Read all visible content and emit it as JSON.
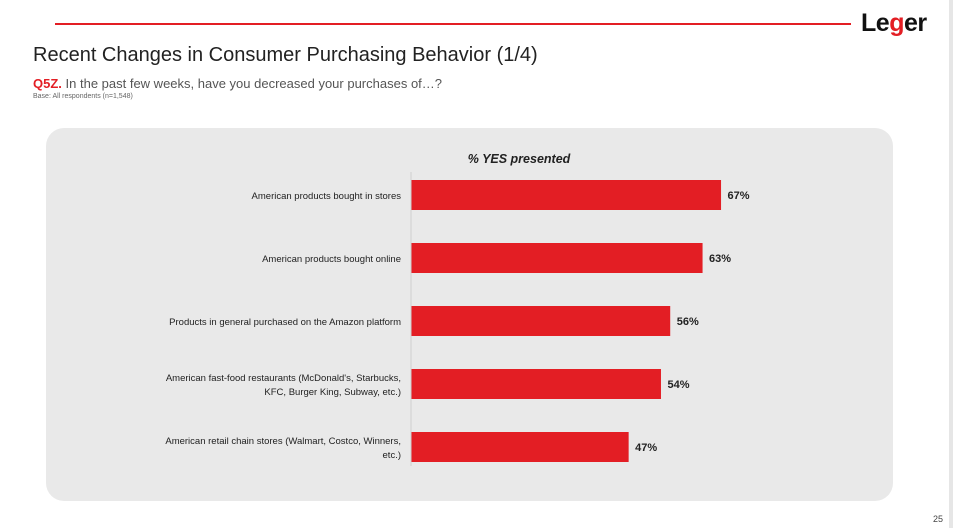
{
  "header": {
    "logo_text_pre": "Le",
    "logo_text_g": "g",
    "logo_text_post": "er",
    "title": "Recent Changes in Consumer Purchasing Behavior (1/4)",
    "question_id": "Q5Z.",
    "question_text": " In the past few weeks, have you decreased your purchases of…?",
    "base": "Base: All respondents (n=1,548)"
  },
  "footer": {
    "page_number": "25"
  },
  "colors": {
    "bar": "#e31e24",
    "accent": "#e31e24",
    "panel": "#e9e9e9"
  },
  "chart_data": {
    "type": "bar",
    "orientation": "horizontal",
    "title": "% YES presented",
    "categories": [
      "American products bought in stores",
      "American products bought online",
      "Products in general purchased on the Amazon platform",
      "American fast-food restaurants (McDonald's, Starbucks, KFC, Burger King, Subway, etc.)",
      "American retail chain stores (Walmart, Costco, Winners, etc.)"
    ],
    "category_lines": [
      [
        "American products bought in stores"
      ],
      [
        "American products bought online"
      ],
      [
        "Products in general purchased on the Amazon platform"
      ],
      [
        "American fast-food restaurants (McDonald's, Starbucks,",
        "KFC, Burger King, Subway, etc.)"
      ],
      [
        "American retail chain stores (Walmart, Costco, Winners,",
        "etc.)"
      ]
    ],
    "values": [
      67,
      63,
      56,
      54,
      47
    ],
    "value_labels": [
      "67%",
      "63%",
      "56%",
      "54%",
      "47%"
    ],
    "xlim": [
      0,
      100
    ],
    "grid": false,
    "legend": "none"
  }
}
